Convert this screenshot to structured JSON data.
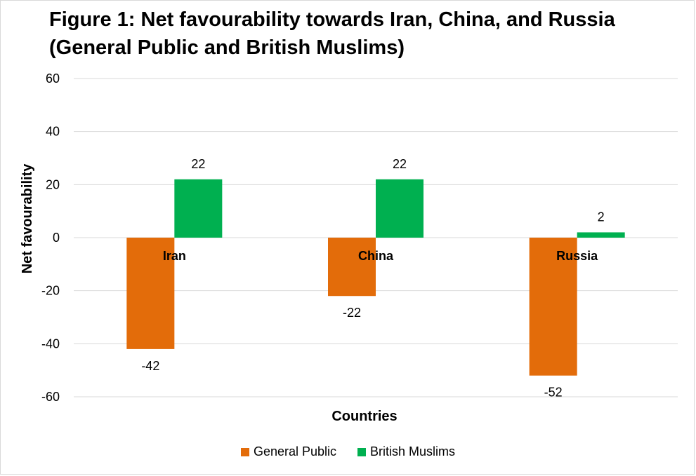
{
  "chart_data": {
    "type": "bar",
    "title": "Figure 1: Net favourability towards Iran, China, and Russia (General Public and British Muslims)",
    "xlabel": "Countries",
    "ylabel": "Net favourability",
    "ylim": [
      -60,
      60
    ],
    "yticks": [
      60,
      40,
      20,
      0,
      -20,
      -40,
      -60
    ],
    "grid": true,
    "legend_position": "bottom",
    "categories": [
      "Iran",
      "China",
      "Russia"
    ],
    "series": [
      {
        "name": "General Public",
        "color": "#e36c0a",
        "values": [
          -42,
          -22,
          -52
        ]
      },
      {
        "name": "British Muslims",
        "color": "#00b050",
        "values": [
          22,
          22,
          2
        ]
      }
    ]
  }
}
